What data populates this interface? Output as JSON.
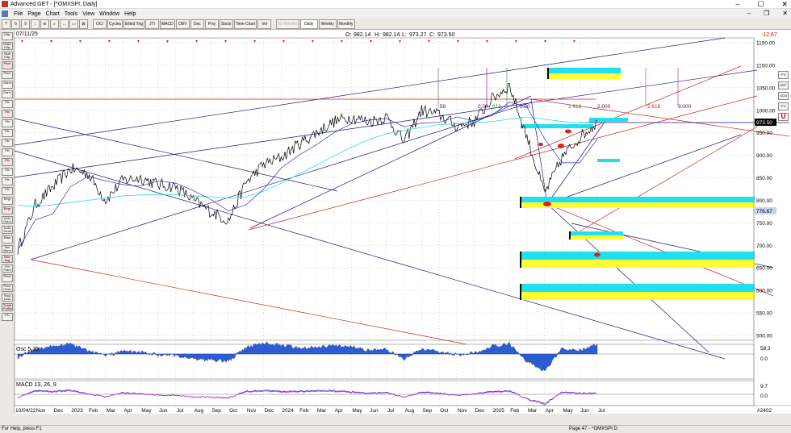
{
  "window": {
    "title": "Advanced GET - [^OMXSPI, Daily]",
    "min": "–",
    "max": "☐",
    "close": "✕"
  },
  "menu": [
    "File",
    "Page",
    "Chart",
    "Tools",
    "View",
    "Window",
    "Help"
  ],
  "mdi": {
    "min": "–",
    "restore": "❐",
    "close": "✕"
  },
  "toolbar": {
    "icons": [
      "?",
      "↻",
      "9",
      "↕",
      "≋",
      "⌕",
      "↔",
      "▭",
      "⊠"
    ],
    "studies": [
      "OCI",
      "Cycles",
      "Elliott Trig",
      "JTI",
      "MACD",
      "OBV",
      "Osc",
      "Proj",
      "Stock",
      "Time Chart",
      "Vol"
    ],
    "periods": [
      "60 Minutes",
      "Daily",
      "Weekly",
      "Monthly"
    ],
    "active_period": "Daily"
  },
  "left_tools": [
    "Ellip",
    "Make Ellip",
    "Mult Ellip",
    "Pitch",
    "Pitch",
    "Gann",
    "Gann",
    "Fib",
    "Fib",
    "Fib",
    "Fib",
    "Fib",
    "Fib",
    "Fib",
    "Fib",
    "Fib",
    "Fib",
    "Regr",
    "Regr",
    "Auto Gann",
    "Auto Trend",
    "Bias",
    "Bol Band",
    "Mov Avg",
    "Pvt Point",
    "Pivot",
    "Price Chan",
    "Stop Loss",
    "Trade Profile",
    "XTL"
  ],
  "chart": {
    "date": "07/11/25",
    "ohlc": {
      "o_label": "O:",
      "o": "982.14",
      "h_label": "H:",
      "h": "982.14",
      "l_label": "L:",
      "l": "973.27",
      "c_label": "C:",
      "c": "973.50"
    },
    "change": "-12.67",
    "current_price": "973.50",
    "marker_price": "776.67",
    "price_ticks": [
      "1150.00",
      "1100.00",
      "1050.00",
      "1000.00",
      "950.00",
      "900.00",
      "850.00",
      "800.00",
      "750.00",
      "700.00",
      "650.00",
      "600.00",
      "550.00",
      "500.00"
    ],
    "fib_labels": [
      ".58",
      "0.50",
      "618",
      "1.00",
      "1.618",
      "2.000",
      "2.618",
      "3.000"
    ],
    "osc_label": "Osc 5,35",
    "osc_value": "58.3",
    "osc_zero": "0.0",
    "macd_label": "MACD 13, 26, 9",
    "macd_value": "9.7",
    "macd_zero": "0.0",
    "x_start": "10/04/22",
    "x_labels": [
      "Nov",
      "Dec",
      "2023",
      "Feb",
      "Mar",
      "Apr",
      "May",
      "Jun",
      "Jul",
      "Aug",
      "Sep",
      "Oct",
      "Nov",
      "Dec",
      "2024",
      "Feb",
      "Mar",
      "Apr",
      "May",
      "Jun",
      "Jul",
      "Aug",
      "Sep",
      "Oct",
      "Nov",
      "Dec",
      "2025",
      "Feb",
      "Mar",
      "Apr",
      "May",
      "Jun",
      "Jul"
    ],
    "bar_count": "#2402"
  },
  "right_tools": [
    "PTI",
    "MTF",
    "SCN",
    "PTI",
    "U"
  ],
  "status": {
    "left": "For Help, press F1",
    "right": "Page 47 - ^OMXSPI D"
  },
  "chart_data": {
    "type": "line",
    "symbol": "^OMXSPI",
    "interval": "Daily",
    "ylim": [
      500,
      1150
    ],
    "x": [
      "2022-10",
      "2022-11",
      "2022-12",
      "2023-01",
      "2023-02",
      "2023-03",
      "2023-04",
      "2023-05",
      "2023-06",
      "2023-07",
      "2023-08",
      "2023-09",
      "2023-10",
      "2023-11",
      "2023-12",
      "2024-01",
      "2024-02",
      "2024-03",
      "2024-04",
      "2024-05",
      "2024-06",
      "2024-07",
      "2024-08",
      "2024-09",
      "2024-10",
      "2024-11",
      "2024-12",
      "2025-01",
      "2025-02",
      "2025-03",
      "2025-04",
      "2025-05",
      "2025-06",
      "2025-07"
    ],
    "close": [
      690,
      790,
      830,
      870,
      860,
      800,
      845,
      850,
      835,
      830,
      800,
      775,
      755,
      840,
      880,
      895,
      925,
      950,
      975,
      985,
      975,
      985,
      930,
      1000,
      990,
      965,
      975,
      1025,
      1055,
      940,
      815,
      895,
      940,
      973.5
    ],
    "ma_long": [
      790,
      785,
      790,
      795,
      800,
      805,
      810,
      812,
      813,
      812,
      810,
      808,
      805,
      808,
      820,
      838,
      858,
      878,
      898,
      918,
      935,
      948,
      955,
      962,
      968,
      970,
      972,
      975,
      980,
      985,
      980,
      975,
      972,
      975
    ],
    "osc": [
      -20,
      30,
      45,
      55,
      20,
      -10,
      15,
      10,
      -5,
      -10,
      -25,
      -35,
      -40,
      35,
      60,
      50,
      35,
      40,
      45,
      40,
      20,
      25,
      -30,
      30,
      15,
      -5,
      5,
      45,
      55,
      -40,
      -95,
      30,
      20,
      58.3
    ],
    "macd": [
      -25,
      30,
      25,
      35,
      5,
      -20,
      15,
      5,
      -5,
      -10,
      -20,
      -25,
      -30,
      25,
      35,
      25,
      25,
      30,
      30,
      20,
      10,
      15,
      -25,
      20,
      10,
      -10,
      5,
      25,
      30,
      -40,
      -85,
      20,
      10,
      9.7
    ]
  }
}
